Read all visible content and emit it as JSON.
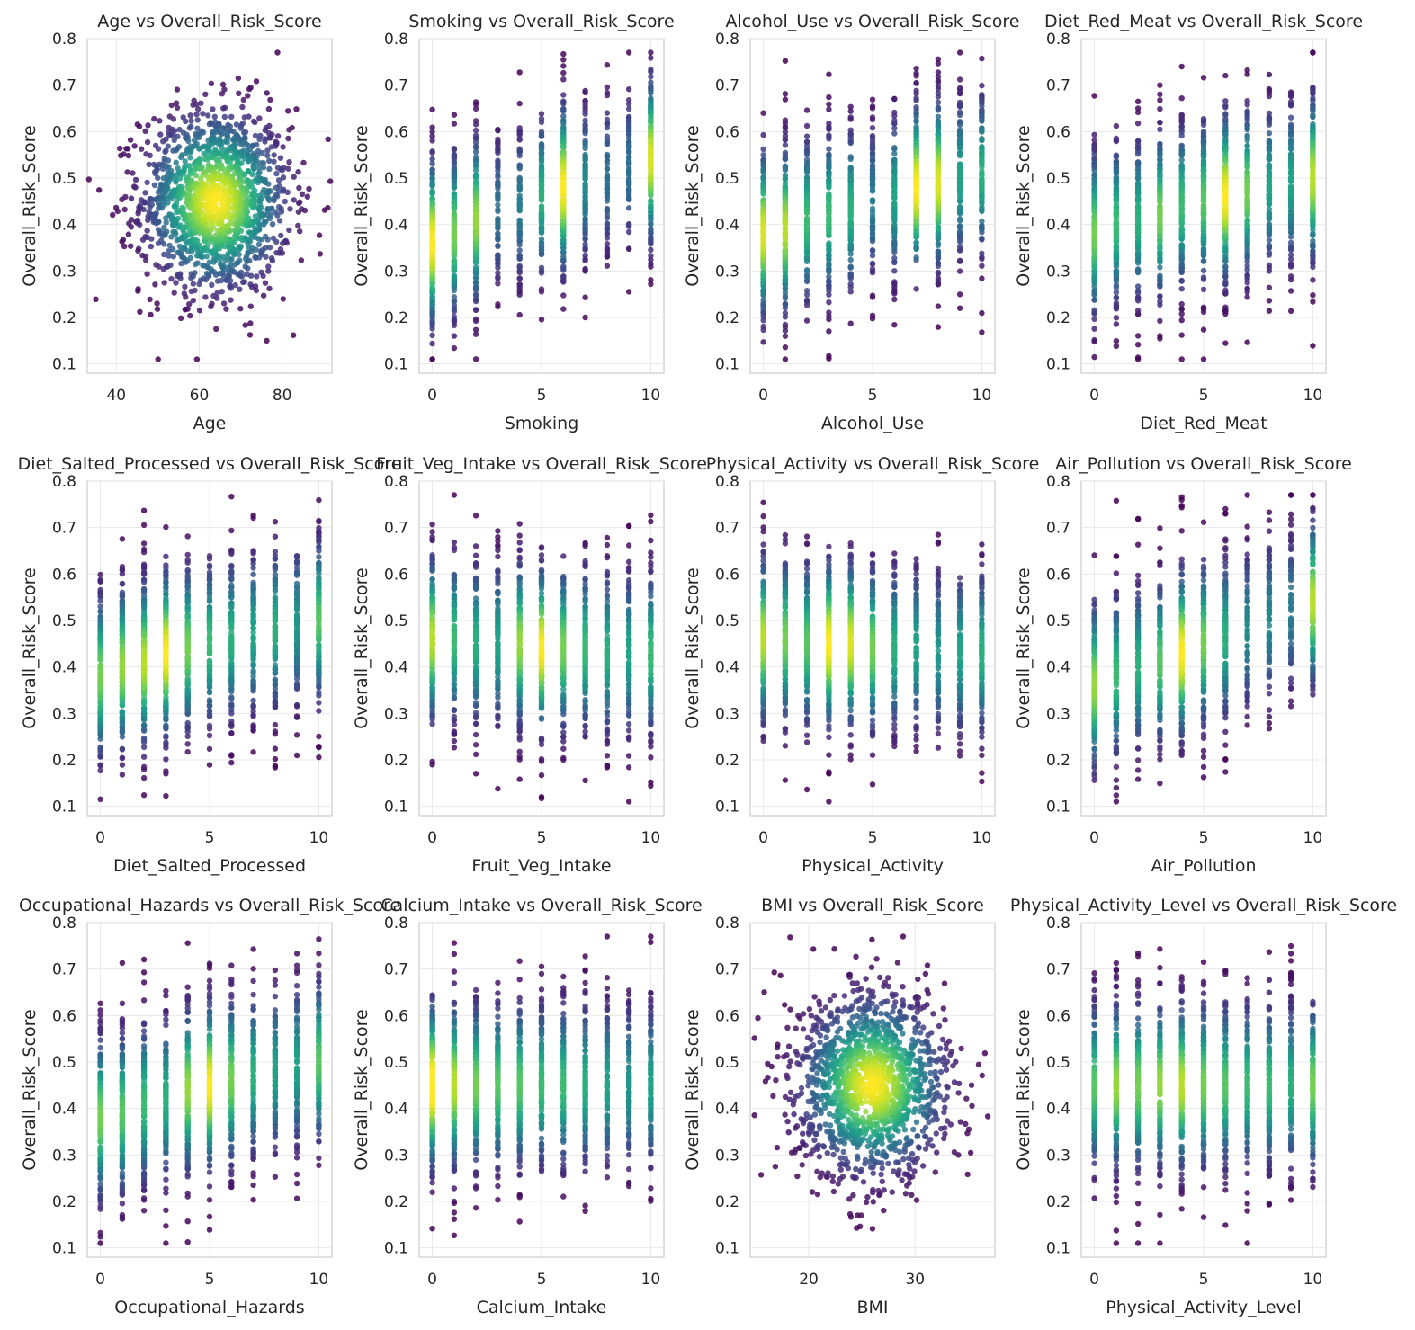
{
  "chart_data": [
    {
      "type": "scatter",
      "title": "Age vs Overall_Risk_Score",
      "xlabel": "Age",
      "ylabel": "Overall_Risk_Score",
      "xlim": [
        33,
        92
      ],
      "ylim": [
        0.08,
        0.8
      ],
      "xticks": [
        40,
        60,
        80
      ],
      "yticks": [
        0.1,
        0.2,
        0.3,
        0.4,
        0.5,
        0.6,
        0.7,
        0.8
      ],
      "distribution": "continuous",
      "x_mean": 64,
      "x_sd": 9,
      "y_mean": 0.45,
      "y_sd": 0.1,
      "n_points": 1500,
      "colormap": "viridis"
    },
    {
      "type": "scatter",
      "title": "Smoking vs Overall_Risk_Score",
      "xlabel": "Smoking",
      "ylabel": "Overall_Risk_Score",
      "xlim": [
        -0.6,
        10.6
      ],
      "ylim": [
        0.08,
        0.8
      ],
      "xticks": [
        0,
        5,
        10
      ],
      "yticks": [
        0.1,
        0.2,
        0.3,
        0.4,
        0.5,
        0.6,
        0.7,
        0.8
      ],
      "distribution": "discrete",
      "categories": [
        0,
        1,
        2,
        3,
        4,
        5,
        6,
        7,
        8,
        9,
        10
      ],
      "counts": [
        190,
        150,
        160,
        70,
        80,
        120,
        190,
        90,
        70,
        70,
        180
      ],
      "y_means": [
        0.36,
        0.38,
        0.41,
        0.43,
        0.44,
        0.46,
        0.48,
        0.49,
        0.5,
        0.52,
        0.54
      ],
      "y_sd": 0.1,
      "colormap": "viridis"
    },
    {
      "type": "scatter",
      "title": "Alcohol_Use vs Overall_Risk_Score",
      "xlabel": "Alcohol_Use",
      "ylabel": "Overall_Risk_Score",
      "xlim": [
        -0.6,
        10.6
      ],
      "ylim": [
        0.08,
        0.8
      ],
      "xticks": [
        0,
        5,
        10
      ],
      "yticks": [
        0.1,
        0.2,
        0.3,
        0.4,
        0.5,
        0.6,
        0.7,
        0.8
      ],
      "distribution": "discrete",
      "categories": [
        0,
        1,
        2,
        3,
        4,
        5,
        6,
        7,
        8,
        9,
        10
      ],
      "counts": [
        180,
        170,
        130,
        130,
        120,
        80,
        110,
        190,
        180,
        110,
        120
      ],
      "y_means": [
        0.38,
        0.39,
        0.41,
        0.42,
        0.43,
        0.45,
        0.46,
        0.48,
        0.49,
        0.5,
        0.51
      ],
      "y_sd": 0.1,
      "colormap": "viridis"
    },
    {
      "type": "scatter",
      "title": "Diet_Red_Meat vs Overall_Risk_Score",
      "xlabel": "Diet_Red_Meat",
      "ylabel": "Overall_Risk_Score",
      "xlim": [
        -0.6,
        10.6
      ],
      "ylim": [
        0.08,
        0.8
      ],
      "xticks": [
        0,
        5,
        10
      ],
      "yticks": [
        0.1,
        0.2,
        0.3,
        0.4,
        0.5,
        0.6,
        0.7,
        0.8
      ],
      "distribution": "discrete",
      "categories": [
        0,
        1,
        2,
        3,
        4,
        5,
        6,
        7,
        8,
        9,
        10
      ],
      "counts": [
        150,
        130,
        120,
        150,
        130,
        140,
        190,
        150,
        110,
        110,
        170
      ],
      "y_means": [
        0.38,
        0.4,
        0.41,
        0.42,
        0.44,
        0.45,
        0.46,
        0.47,
        0.48,
        0.49,
        0.5
      ],
      "y_sd": 0.1,
      "colormap": "viridis"
    },
    {
      "type": "scatter",
      "title": "Diet_Salted_Processed vs Overall_Risk_Score",
      "xlabel": "Diet_Salted_Processed",
      "ylabel": "Overall_Risk_Score",
      "xlim": [
        -0.6,
        10.6
      ],
      "ylim": [
        0.08,
        0.8
      ],
      "xticks": [
        0,
        5,
        10
      ],
      "yticks": [
        0.1,
        0.2,
        0.3,
        0.4,
        0.5,
        0.6,
        0.7,
        0.8
      ],
      "distribution": "discrete",
      "categories": [
        0,
        1,
        2,
        3,
        4,
        5,
        6,
        7,
        8,
        9,
        10
      ],
      "counts": [
        150,
        160,
        170,
        190,
        150,
        130,
        120,
        110,
        120,
        100,
        140
      ],
      "y_means": [
        0.38,
        0.4,
        0.41,
        0.43,
        0.44,
        0.45,
        0.46,
        0.47,
        0.48,
        0.49,
        0.5
      ],
      "y_sd": 0.1,
      "colormap": "viridis"
    },
    {
      "type": "scatter",
      "title": "Fruit_Veg_Intake vs Overall_Risk_Score",
      "xlabel": "Fruit_Veg_Intake",
      "ylabel": "Overall_Risk_Score",
      "xlim": [
        -0.6,
        10.6
      ],
      "ylim": [
        0.08,
        0.8
      ],
      "xticks": [
        0,
        5,
        10
      ],
      "yticks": [
        0.1,
        0.2,
        0.3,
        0.4,
        0.5,
        0.6,
        0.7,
        0.8
      ],
      "distribution": "discrete",
      "categories": [
        0,
        1,
        2,
        3,
        4,
        5,
        6,
        7,
        8,
        9,
        10
      ],
      "counts": [
        170,
        130,
        120,
        110,
        160,
        190,
        150,
        130,
        120,
        110,
        130
      ],
      "y_means": [
        0.46,
        0.46,
        0.45,
        0.45,
        0.45,
        0.44,
        0.44,
        0.44,
        0.43,
        0.43,
        0.43
      ],
      "y_sd": 0.1,
      "colormap": "viridis"
    },
    {
      "type": "scatter",
      "title": "Physical_Activity vs Overall_Risk_Score",
      "xlabel": "Physical_Activity",
      "ylabel": "Overall_Risk_Score",
      "xlim": [
        -0.6,
        10.6
      ],
      "ylim": [
        0.08,
        0.8
      ],
      "xticks": [
        0,
        5,
        10
      ],
      "yticks": [
        0.1,
        0.2,
        0.3,
        0.4,
        0.5,
        0.6,
        0.7,
        0.8
      ],
      "distribution": "discrete",
      "categories": [
        0,
        1,
        2,
        3,
        4,
        5,
        6,
        7,
        8,
        9,
        10
      ],
      "counts": [
        170,
        150,
        140,
        190,
        180,
        150,
        120,
        110,
        100,
        110,
        120
      ],
      "y_means": [
        0.46,
        0.46,
        0.45,
        0.45,
        0.45,
        0.44,
        0.44,
        0.44,
        0.43,
        0.43,
        0.43
      ],
      "y_sd": 0.1,
      "colormap": "viridis"
    },
    {
      "type": "scatter",
      "title": "Air_Pollution vs Overall_Risk_Score",
      "xlabel": "Air_Pollution",
      "ylabel": "Overall_Risk_Score",
      "xlim": [
        -0.6,
        10.6
      ],
      "ylim": [
        0.08,
        0.8
      ],
      "xticks": [
        0,
        5,
        10
      ],
      "yticks": [
        0.1,
        0.2,
        0.3,
        0.4,
        0.5,
        0.6,
        0.7,
        0.8
      ],
      "distribution": "discrete",
      "categories": [
        0,
        1,
        2,
        3,
        4,
        5,
        6,
        7,
        8,
        9,
        10
      ],
      "counts": [
        160,
        130,
        120,
        140,
        190,
        150,
        120,
        90,
        90,
        80,
        170
      ],
      "y_means": [
        0.36,
        0.38,
        0.4,
        0.41,
        0.43,
        0.45,
        0.46,
        0.48,
        0.5,
        0.52,
        0.54
      ],
      "y_sd": 0.1,
      "colormap": "viridis"
    },
    {
      "type": "scatter",
      "title": "Occupational_Hazards vs Overall_Risk_Score",
      "xlabel": "Occupational_Hazards",
      "ylabel": "Overall_Risk_Score",
      "xlim": [
        -0.6,
        10.6
      ],
      "ylim": [
        0.08,
        0.8
      ],
      "xticks": [
        0,
        5,
        10
      ],
      "yticks": [
        0.1,
        0.2,
        0.3,
        0.4,
        0.5,
        0.6,
        0.7,
        0.8
      ],
      "distribution": "discrete",
      "categories": [
        0,
        1,
        2,
        3,
        4,
        5,
        6,
        7,
        8,
        9,
        10
      ],
      "counts": [
        150,
        140,
        130,
        120,
        160,
        190,
        150,
        120,
        110,
        110,
        140
      ],
      "y_means": [
        0.38,
        0.39,
        0.41,
        0.42,
        0.44,
        0.45,
        0.46,
        0.47,
        0.48,
        0.49,
        0.5
      ],
      "y_sd": 0.1,
      "colormap": "viridis"
    },
    {
      "type": "scatter",
      "title": "Calcium_Intake vs Overall_Risk_Score",
      "xlabel": "Calcium_Intake",
      "ylabel": "Overall_Risk_Score",
      "xlim": [
        -0.6,
        10.6
      ],
      "ylim": [
        0.08,
        0.8
      ],
      "xticks": [
        0,
        5,
        10
      ],
      "yticks": [
        0.1,
        0.2,
        0.3,
        0.4,
        0.5,
        0.6,
        0.7,
        0.8
      ],
      "distribution": "discrete",
      "categories": [
        0,
        1,
        2,
        3,
        4,
        5,
        6,
        7,
        8,
        9,
        10
      ],
      "counts": [
        200,
        170,
        150,
        140,
        140,
        130,
        130,
        120,
        110,
        100,
        110
      ],
      "y_means": [
        0.45,
        0.45,
        0.45,
        0.45,
        0.45,
        0.45,
        0.45,
        0.45,
        0.45,
        0.45,
        0.45
      ],
      "y_sd": 0.1,
      "colormap": "viridis"
    },
    {
      "type": "scatter",
      "title": "BMI vs Overall_Risk_Score",
      "xlabel": "BMI",
      "ylabel": "Overall_Risk_Score",
      "xlim": [
        14.5,
        37.5
      ],
      "ylim": [
        0.08,
        0.8
      ],
      "xticks": [
        20,
        30
      ],
      "yticks": [
        0.1,
        0.2,
        0.3,
        0.4,
        0.5,
        0.6,
        0.7,
        0.8
      ],
      "distribution": "continuous",
      "x_mean": 26,
      "x_sd": 3.6,
      "y_mean": 0.45,
      "y_sd": 0.1,
      "n_points": 1500,
      "colormap": "viridis"
    },
    {
      "type": "scatter",
      "title": "Physical_Activity_Level vs Overall_Risk_Score",
      "xlabel": "Physical_Activity_Level",
      "ylabel": "Overall_Risk_Score",
      "xlim": [
        -0.6,
        10.6
      ],
      "ylim": [
        0.08,
        0.8
      ],
      "xticks": [
        0,
        5,
        10
      ],
      "yticks": [
        0.1,
        0.2,
        0.3,
        0.4,
        0.5,
        0.6,
        0.7,
        0.8
      ],
      "distribution": "discrete",
      "categories": [
        0,
        1,
        2,
        3,
        4,
        5,
        6,
        7,
        8,
        9,
        10
      ],
      "counts": [
        140,
        160,
        150,
        160,
        170,
        150,
        140,
        130,
        130,
        120,
        150
      ],
      "y_means": [
        0.45,
        0.45,
        0.45,
        0.45,
        0.45,
        0.45,
        0.45,
        0.45,
        0.45,
        0.45,
        0.45
      ],
      "y_sd": 0.1,
      "colormap": "viridis"
    }
  ]
}
